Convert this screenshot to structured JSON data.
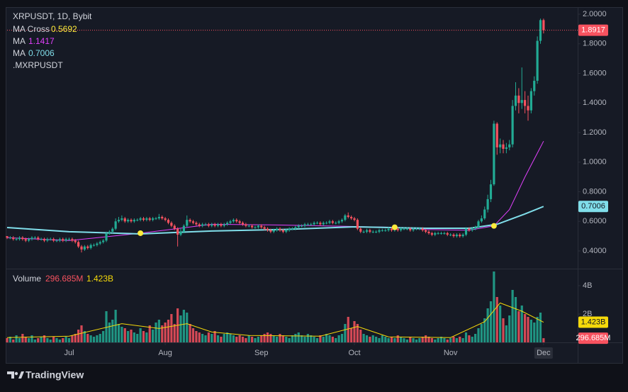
{
  "chart_data": {
    "type": "candlestick",
    "title": "XRPUSDT, 1D, Bybit",
    "symbol_label": ".MXRPUSDT",
    "up_color": "#22ab94",
    "down_color": "#f7525f",
    "xlim": [
      0,
      184
    ],
    "xticks": [
      {
        "value": 20,
        "label": "Jul"
      },
      {
        "value": 51,
        "label": "Aug"
      },
      {
        "value": 82,
        "label": "Sep"
      },
      {
        "value": 112,
        "label": "Oct"
      },
      {
        "value": 143,
        "label": "Nov"
      },
      {
        "value": 173,
        "label": "Dec"
      }
    ],
    "ylim": [
      0.285,
      2.048
    ],
    "yticks": [
      {
        "value": 0.4,
        "label": "0.4000"
      },
      {
        "value": 0.6,
        "label": "0.6000"
      },
      {
        "value": 0.8,
        "label": "0.8000"
      },
      {
        "value": 1.0,
        "label": "1.0000"
      },
      {
        "value": 1.2,
        "label": "1.2000"
      },
      {
        "value": 1.4,
        "label": "1.4000"
      },
      {
        "value": 1.6,
        "label": "1.6000"
      },
      {
        "value": 1.8,
        "label": "1.8000"
      },
      {
        "value": 2.0,
        "label": "2.0000"
      }
    ],
    "candles": [
      [
        0.5,
        0.5,
        0.48,
        0.49
      ],
      [
        0.49,
        0.5,
        0.48,
        0.49
      ],
      [
        0.49,
        0.5,
        0.47,
        0.48
      ],
      [
        0.48,
        0.49,
        0.47,
        0.48
      ],
      [
        0.48,
        0.5,
        0.47,
        0.49
      ],
      [
        0.49,
        0.5,
        0.47,
        0.48
      ],
      [
        0.48,
        0.49,
        0.46,
        0.47
      ],
      [
        0.47,
        0.49,
        0.46,
        0.48
      ],
      [
        0.48,
        0.5,
        0.47,
        0.49
      ],
      [
        0.49,
        0.5,
        0.48,
        0.49
      ],
      [
        0.49,
        0.5,
        0.47,
        0.48
      ],
      [
        0.48,
        0.49,
        0.47,
        0.48
      ],
      [
        0.48,
        0.49,
        0.46,
        0.47
      ],
      [
        0.47,
        0.49,
        0.46,
        0.48
      ],
      [
        0.48,
        0.49,
        0.47,
        0.48
      ],
      [
        0.48,
        0.49,
        0.46,
        0.47
      ],
      [
        0.47,
        0.48,
        0.46,
        0.47
      ],
      [
        0.47,
        0.49,
        0.46,
        0.48
      ],
      [
        0.48,
        0.49,
        0.46,
        0.47
      ],
      [
        0.47,
        0.49,
        0.46,
        0.48
      ],
      [
        0.48,
        0.49,
        0.47,
        0.48
      ],
      [
        0.48,
        0.49,
        0.46,
        0.47
      ],
      [
        0.47,
        0.48,
        0.45,
        0.46
      ],
      [
        0.46,
        0.47,
        0.42,
        0.43
      ],
      [
        0.43,
        0.44,
        0.39,
        0.41
      ],
      [
        0.41,
        0.44,
        0.4,
        0.43
      ],
      [
        0.43,
        0.44,
        0.41,
        0.42
      ],
      [
        0.42,
        0.45,
        0.41,
        0.44
      ],
      [
        0.44,
        0.45,
        0.43,
        0.44
      ],
      [
        0.44,
        0.46,
        0.43,
        0.45
      ],
      [
        0.45,
        0.47,
        0.44,
        0.46
      ],
      [
        0.46,
        0.48,
        0.45,
        0.47
      ],
      [
        0.47,
        0.53,
        0.46,
        0.52
      ],
      [
        0.52,
        0.54,
        0.51,
        0.53
      ],
      [
        0.53,
        0.56,
        0.52,
        0.55
      ],
      [
        0.55,
        0.62,
        0.54,
        0.6
      ],
      [
        0.6,
        0.63,
        0.59,
        0.61
      ],
      [
        0.61,
        0.64,
        0.6,
        0.62
      ],
      [
        0.62,
        0.63,
        0.59,
        0.6
      ],
      [
        0.6,
        0.62,
        0.59,
        0.61
      ],
      [
        0.61,
        0.62,
        0.59,
        0.6
      ],
      [
        0.6,
        0.62,
        0.59,
        0.61
      ],
      [
        0.61,
        0.62,
        0.6,
        0.61
      ],
      [
        0.61,
        0.63,
        0.6,
        0.62
      ],
      [
        0.62,
        0.63,
        0.6,
        0.61
      ],
      [
        0.61,
        0.63,
        0.6,
        0.62
      ],
      [
        0.62,
        0.63,
        0.6,
        0.61
      ],
      [
        0.61,
        0.63,
        0.6,
        0.62
      ],
      [
        0.62,
        0.63,
        0.61,
        0.62
      ],
      [
        0.62,
        0.65,
        0.61,
        0.63
      ],
      [
        0.63,
        0.64,
        0.61,
        0.62
      ],
      [
        0.62,
        0.63,
        0.6,
        0.61
      ],
      [
        0.61,
        0.62,
        0.58,
        0.59
      ],
      [
        0.59,
        0.6,
        0.56,
        0.57
      ],
      [
        0.57,
        0.58,
        0.54,
        0.55
      ],
      [
        0.55,
        0.56,
        0.43,
        0.51
      ],
      [
        0.51,
        0.55,
        0.5,
        0.53
      ],
      [
        0.53,
        0.58,
        0.52,
        0.57
      ],
      [
        0.57,
        0.64,
        0.56,
        0.61
      ],
      [
        0.61,
        0.62,
        0.59,
        0.6
      ],
      [
        0.6,
        0.61,
        0.58,
        0.59
      ],
      [
        0.59,
        0.6,
        0.57,
        0.58
      ],
      [
        0.58,
        0.59,
        0.56,
        0.57
      ],
      [
        0.57,
        0.59,
        0.56,
        0.58
      ],
      [
        0.58,
        0.59,
        0.57,
        0.58
      ],
      [
        0.58,
        0.59,
        0.56,
        0.57
      ],
      [
        0.57,
        0.59,
        0.56,
        0.58
      ],
      [
        0.58,
        0.59,
        0.56,
        0.57
      ],
      [
        0.57,
        0.59,
        0.56,
        0.58
      ],
      [
        0.58,
        0.59,
        0.56,
        0.57
      ],
      [
        0.57,
        0.59,
        0.56,
        0.58
      ],
      [
        0.58,
        0.6,
        0.57,
        0.59
      ],
      [
        0.59,
        0.61,
        0.58,
        0.6
      ],
      [
        0.6,
        0.62,
        0.59,
        0.61
      ],
      [
        0.61,
        0.62,
        0.59,
        0.6
      ],
      [
        0.6,
        0.61,
        0.58,
        0.59
      ],
      [
        0.59,
        0.6,
        0.57,
        0.58
      ],
      [
        0.58,
        0.59,
        0.56,
        0.57
      ],
      [
        0.57,
        0.58,
        0.56,
        0.57
      ],
      [
        0.57,
        0.58,
        0.55,
        0.56
      ],
      [
        0.56,
        0.57,
        0.55,
        0.56
      ],
      [
        0.56,
        0.58,
        0.55,
        0.57
      ],
      [
        0.57,
        0.58,
        0.55,
        0.56
      ],
      [
        0.56,
        0.57,
        0.54,
        0.55
      ],
      [
        0.55,
        0.56,
        0.53,
        0.54
      ],
      [
        0.54,
        0.55,
        0.52,
        0.53
      ],
      [
        0.53,
        0.55,
        0.52,
        0.54
      ],
      [
        0.54,
        0.56,
        0.53,
        0.55
      ],
      [
        0.55,
        0.56,
        0.53,
        0.54
      ],
      [
        0.54,
        0.55,
        0.52,
        0.53
      ],
      [
        0.53,
        0.55,
        0.52,
        0.54
      ],
      [
        0.54,
        0.56,
        0.53,
        0.55
      ],
      [
        0.55,
        0.56,
        0.54,
        0.55
      ],
      [
        0.55,
        0.57,
        0.54,
        0.56
      ],
      [
        0.56,
        0.58,
        0.55,
        0.57
      ],
      [
        0.57,
        0.58,
        0.56,
        0.57
      ],
      [
        0.57,
        0.59,
        0.56,
        0.58
      ],
      [
        0.58,
        0.59,
        0.57,
        0.58
      ],
      [
        0.58,
        0.59,
        0.57,
        0.58
      ],
      [
        0.58,
        0.6,
        0.57,
        0.59
      ],
      [
        0.59,
        0.6,
        0.58,
        0.59
      ],
      [
        0.59,
        0.6,
        0.57,
        0.58
      ],
      [
        0.58,
        0.6,
        0.57,
        0.59
      ],
      [
        0.59,
        0.6,
        0.58,
        0.59
      ],
      [
        0.59,
        0.61,
        0.58,
        0.6
      ],
      [
        0.6,
        0.61,
        0.58,
        0.59
      ],
      [
        0.59,
        0.6,
        0.58,
        0.59
      ],
      [
        0.59,
        0.61,
        0.58,
        0.6
      ],
      [
        0.6,
        0.62,
        0.59,
        0.61
      ],
      [
        0.61,
        0.65,
        0.6,
        0.64
      ],
      [
        0.64,
        0.66,
        0.62,
        0.63
      ],
      [
        0.63,
        0.64,
        0.61,
        0.62
      ],
      [
        0.62,
        0.63,
        0.6,
        0.61
      ],
      [
        0.61,
        0.62,
        0.54,
        0.55
      ],
      [
        0.55,
        0.56,
        0.52,
        0.53
      ],
      [
        0.53,
        0.54,
        0.52,
        0.53
      ],
      [
        0.53,
        0.55,
        0.52,
        0.54
      ],
      [
        0.54,
        0.55,
        0.52,
        0.53
      ],
      [
        0.53,
        0.54,
        0.52,
        0.53
      ],
      [
        0.53,
        0.54,
        0.52,
        0.53
      ],
      [
        0.53,
        0.55,
        0.52,
        0.54
      ],
      [
        0.54,
        0.55,
        0.53,
        0.54
      ],
      [
        0.54,
        0.55,
        0.53,
        0.54
      ],
      [
        0.54,
        0.56,
        0.53,
        0.55
      ],
      [
        0.55,
        0.56,
        0.53,
        0.54
      ],
      [
        0.54,
        0.56,
        0.53,
        0.55
      ],
      [
        0.55,
        0.56,
        0.53,
        0.54
      ],
      [
        0.54,
        0.56,
        0.53,
        0.55
      ],
      [
        0.55,
        0.56,
        0.54,
        0.55
      ],
      [
        0.55,
        0.56,
        0.54,
        0.55
      ],
      [
        0.55,
        0.56,
        0.53,
        0.54
      ],
      [
        0.54,
        0.56,
        0.53,
        0.55
      ],
      [
        0.55,
        0.56,
        0.54,
        0.55
      ],
      [
        0.55,
        0.56,
        0.54,
        0.55
      ],
      [
        0.55,
        0.56,
        0.53,
        0.54
      ],
      [
        0.54,
        0.55,
        0.52,
        0.53
      ],
      [
        0.53,
        0.54,
        0.51,
        0.52
      ],
      [
        0.52,
        0.53,
        0.5,
        0.51
      ],
      [
        0.51,
        0.53,
        0.5,
        0.52
      ],
      [
        0.52,
        0.53,
        0.51,
        0.52
      ],
      [
        0.52,
        0.53,
        0.51,
        0.52
      ],
      [
        0.52,
        0.53,
        0.51,
        0.52
      ],
      [
        0.52,
        0.53,
        0.5,
        0.51
      ],
      [
        0.51,
        0.52,
        0.5,
        0.51
      ],
      [
        0.51,
        0.52,
        0.49,
        0.5
      ],
      [
        0.5,
        0.52,
        0.49,
        0.51
      ],
      [
        0.51,
        0.52,
        0.49,
        0.5
      ],
      [
        0.5,
        0.52,
        0.49,
        0.51
      ],
      [
        0.51,
        0.56,
        0.5,
        0.55
      ],
      [
        0.55,
        0.56,
        0.53,
        0.54
      ],
      [
        0.54,
        0.56,
        0.53,
        0.55
      ],
      [
        0.55,
        0.57,
        0.54,
        0.56
      ],
      [
        0.56,
        0.61,
        0.55,
        0.6
      ],
      [
        0.6,
        0.64,
        0.59,
        0.62
      ],
      [
        0.62,
        0.7,
        0.61,
        0.68
      ],
      [
        0.68,
        0.78,
        0.66,
        0.75
      ],
      [
        0.75,
        0.88,
        0.73,
        0.85
      ],
      [
        0.85,
        1.28,
        0.84,
        1.26
      ],
      [
        1.26,
        1.27,
        1.05,
        1.1
      ],
      [
        1.1,
        1.16,
        1.06,
        1.12
      ],
      [
        1.12,
        1.15,
        1.06,
        1.09
      ],
      [
        1.09,
        1.13,
        1.06,
        1.1
      ],
      [
        1.1,
        1.15,
        1.08,
        1.12
      ],
      [
        1.12,
        1.42,
        1.1,
        1.38
      ],
      [
        1.38,
        1.54,
        1.35,
        1.45
      ],
      [
        1.45,
        1.5,
        1.33,
        1.4
      ],
      [
        1.4,
        1.64,
        1.36,
        1.42
      ],
      [
        1.42,
        1.48,
        1.33,
        1.38
      ],
      [
        1.38,
        1.45,
        1.28,
        1.35
      ],
      [
        1.35,
        1.5,
        1.33,
        1.48
      ],
      [
        1.48,
        1.58,
        1.45,
        1.55
      ],
      [
        1.55,
        1.85,
        1.53,
        1.82
      ],
      [
        1.82,
        1.97,
        1.8,
        1.96
      ],
      [
        1.96,
        1.97,
        1.87,
        1.8917
      ]
    ],
    "ma_lines": [
      {
        "name": "MA",
        "color": "#e040fb",
        "x": [
          0,
          20,
          43,
          66,
          89,
          112,
          125,
          135,
          149,
          157,
          162,
          167,
          173
        ],
        "values": [
          0.49,
          0.47,
          0.52,
          0.58,
          0.575,
          0.565,
          0.56,
          0.545,
          0.54,
          0.5692,
          0.68,
          0.9,
          1.1417
        ]
      },
      {
        "name": "MA",
        "color": "#80deea",
        "x": [
          0,
          20,
          43,
          66,
          89,
          112,
          135,
          149,
          158,
          167,
          173
        ],
        "values": [
          0.558,
          0.53,
          0.515,
          0.535,
          0.545,
          0.563,
          0.553,
          0.553,
          0.58,
          0.65,
          0.7006
        ]
      }
    ],
    "cross": {
      "name": "MA Cross",
      "color": "#ffeb3b",
      "x": [
        43,
        125,
        157
      ],
      "values": [
        0.52,
        0.56,
        0.5692
      ]
    },
    "volume": {
      "name": "Volume",
      "ylim": [
        0,
        5150000000.0
      ],
      "yticks": [
        {
          "value": 2000000000.0,
          "label": "2B"
        },
        {
          "value": 4000000000.0,
          "label": "4B"
        }
      ],
      "values": [
        300000000.0,
        400000000.0,
        200000000.0,
        500000000.0,
        300000000.0,
        600000000.0,
        400000000.0,
        300000000.0,
        500000000.0,
        200000000.0,
        300000000.0,
        400000000.0,
        500000000.0,
        300000000.0,
        200000000.0,
        400000000.0,
        300000000.0,
        200000000.0,
        300000000.0,
        400000000.0,
        300000000.0,
        500000000.0,
        600000000.0,
        900000000.0,
        1200000000.0,
        800000000.0,
        600000000.0,
        500000000.0,
        400000000.0,
        500000000.0,
        600000000.0,
        800000000.0,
        2200000000.0,
        1400000000.0,
        1600000000.0,
        2300000000.0,
        1300000000.0,
        1100000000.0,
        1000000000.0,
        800000000.0,
        900000000.0,
        700000000.0,
        600000000.0,
        1000000000.0,
        800000000.0,
        700000000.0,
        1200000000.0,
        900000000.0,
        1400000000.0,
        1600000000.0,
        1200000000.0,
        1400000000.0,
        1600000000.0,
        2000000000.0,
        1300000000.0,
        2400000000.0,
        1900000000.0,
        2300000000.0,
        2100000000.0,
        1300000000.0,
        1000000000.0,
        800000000.0,
        700000000.0,
        600000000.0,
        500000000.0,
        700000000.0,
        600000000.0,
        800000000.0,
        500000000.0,
        400000000.0,
        600000000.0,
        700000000.0,
        600000000.0,
        500000000.0,
        400000000.0,
        500000000.0,
        400000000.0,
        300000000.0,
        500000000.0,
        400000000.0,
        300000000.0,
        400000000.0,
        500000000.0,
        600000000.0,
        700000000.0,
        600000000.0,
        500000000.0,
        400000000.0,
        600000000.0,
        500000000.0,
        400000000.0,
        300000000.0,
        500000000.0,
        600000000.0,
        700000000.0,
        500000000.0,
        400000000.0,
        600000000.0,
        500000000.0,
        400000000.0,
        300000000.0,
        500000000.0,
        400000000.0,
        600000000.0,
        500000000.0,
        400000000.0,
        300000000.0,
        500000000.0,
        600000000.0,
        1300000000.0,
        1800000000.0,
        1000000000.0,
        1500000000.0,
        1300000000.0,
        900000000.0,
        600000000.0,
        500000000.0,
        400000000.0,
        500000000.0,
        400000000.0,
        300000000.0,
        500000000.0,
        400000000.0,
        300000000.0,
        400000000.0,
        300000000.0,
        500000000.0,
        400000000.0,
        300000000.0,
        200000000.0,
        400000000.0,
        300000000.0,
        200000000.0,
        300000000.0,
        400000000.0,
        500000000.0,
        400000000.0,
        300000000.0,
        200000000.0,
        300000000.0,
        400000000.0,
        300000000.0,
        200000000.0,
        300000000.0,
        400000000.0,
        300000000.0,
        400000000.0,
        300000000.0,
        700000000.0,
        500000000.0,
        400000000.0,
        600000000.0,
        1000000000.0,
        1300000000.0,
        1700000000.0,
        2400000000.0,
        2900000000.0,
        5000000000.0,
        3200000000.0,
        2600000000.0,
        1700000000.0,
        1200000000.0,
        1900000000.0,
        3700000000.0,
        3200000000.0,
        2200000000.0,
        2600000000.0,
        2000000000.0,
        1800000000.0,
        1600000000.0,
        1400000000.0,
        1800000000.0,
        2100000000.0,
        296685000.0
      ],
      "last_label": "296.685M"
    },
    "volume_ma": {
      "color": "#f5d90a",
      "x": [
        0,
        20,
        37,
        49,
        58,
        66,
        78,
        101,
        113,
        123,
        143,
        154,
        159,
        166,
        173
      ],
      "values": [
        340000000.0,
        440000000.0,
        1320000000.0,
        980000000.0,
        1320000000.0,
        730000000.0,
        490000000.0,
        440000000.0,
        1120000000.0,
        390000000.0,
        340000000.0,
        1460000000.0,
        2780000000.0,
        2200000000.0,
        1423000000.0
      ],
      "last_label": "1.423B"
    }
  },
  "footer": {
    "brand": "TradingView"
  }
}
